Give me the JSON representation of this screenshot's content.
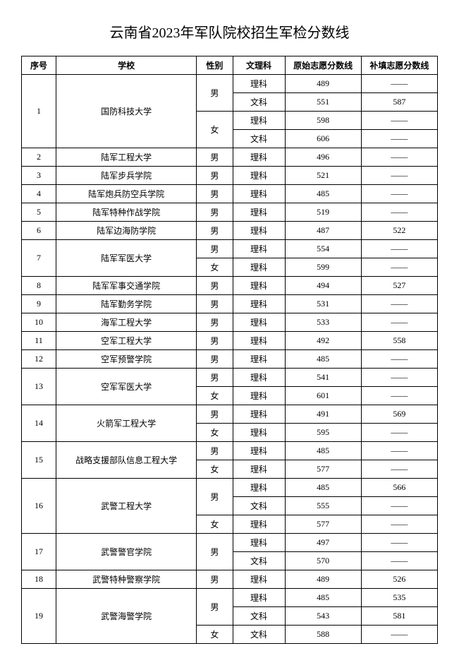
{
  "title": "云南省2023年军队院校招生军检分数线",
  "headers": {
    "seq": "序号",
    "school": "学校",
    "gender": "性别",
    "subject": "文理科",
    "score1": "原始志愿分数线",
    "score2": "补填志愿分数线"
  },
  "dash": "——",
  "rows": [
    {
      "seq": "1",
      "school": "国防科技大学",
      "gender": "男",
      "subject": "理科",
      "s1": "489",
      "s2": "——"
    },
    {
      "seq": "",
      "school": "",
      "gender": "",
      "subject": "文科",
      "s1": "551",
      "s2": "587"
    },
    {
      "seq": "",
      "school": "",
      "gender": "女",
      "subject": "理科",
      "s1": "598",
      "s2": "——"
    },
    {
      "seq": "",
      "school": "",
      "gender": "",
      "subject": "文科",
      "s1": "606",
      "s2": "——"
    },
    {
      "seq": "2",
      "school": "陆军工程大学",
      "gender": "男",
      "subject": "理科",
      "s1": "496",
      "s2": "——"
    },
    {
      "seq": "3",
      "school": "陆军步兵学院",
      "gender": "男",
      "subject": "理科",
      "s1": "521",
      "s2": "——"
    },
    {
      "seq": "4",
      "school": "陆军炮兵防空兵学院",
      "gender": "男",
      "subject": "理科",
      "s1": "485",
      "s2": "——"
    },
    {
      "seq": "5",
      "school": "陆军特种作战学院",
      "gender": "男",
      "subject": "理科",
      "s1": "519",
      "s2": "——"
    },
    {
      "seq": "6",
      "school": "陆军边海防学院",
      "gender": "男",
      "subject": "理科",
      "s1": "487",
      "s2": "522"
    },
    {
      "seq": "7",
      "school": "陆军军医大学",
      "gender": "男",
      "subject": "理科",
      "s1": "554",
      "s2": "——"
    },
    {
      "seq": "",
      "school": "",
      "gender": "女",
      "subject": "理科",
      "s1": "599",
      "s2": "——"
    },
    {
      "seq": "8",
      "school": "陆军军事交通学院",
      "gender": "男",
      "subject": "理科",
      "s1": "494",
      "s2": "527"
    },
    {
      "seq": "9",
      "school": "陆军勤务学院",
      "gender": "男",
      "subject": "理科",
      "s1": "531",
      "s2": "——"
    },
    {
      "seq": "10",
      "school": "海军工程大学",
      "gender": "男",
      "subject": "理科",
      "s1": "533",
      "s2": "——"
    },
    {
      "seq": "11",
      "school": "空军工程大学",
      "gender": "男",
      "subject": "理科",
      "s1": "492",
      "s2": "558"
    },
    {
      "seq": "12",
      "school": "空军预警学院",
      "gender": "男",
      "subject": "理科",
      "s1": "485",
      "s2": "——"
    },
    {
      "seq": "13",
      "school": "空军军医大学",
      "gender": "男",
      "subject": "理科",
      "s1": "541",
      "s2": "——"
    },
    {
      "seq": "",
      "school": "",
      "gender": "女",
      "subject": "理科",
      "s1": "601",
      "s2": "——"
    },
    {
      "seq": "14",
      "school": "火箭军工程大学",
      "gender": "男",
      "subject": "理科",
      "s1": "491",
      "s2": "569"
    },
    {
      "seq": "",
      "school": "",
      "gender": "女",
      "subject": "理科",
      "s1": "595",
      "s2": "——"
    },
    {
      "seq": "15",
      "school": "战略支援部队信息工程大学",
      "gender": "男",
      "subject": "理科",
      "s1": "485",
      "s2": "——"
    },
    {
      "seq": "",
      "school": "",
      "gender": "女",
      "subject": "理科",
      "s1": "577",
      "s2": "——"
    },
    {
      "seq": "16",
      "school": "武警工程大学",
      "gender": "男",
      "subject": "理科",
      "s1": "485",
      "s2": "566"
    },
    {
      "seq": "",
      "school": "",
      "gender": "",
      "subject": "文科",
      "s1": "555",
      "s2": "——"
    },
    {
      "seq": "",
      "school": "",
      "gender": "女",
      "subject": "理科",
      "s1": "577",
      "s2": "——"
    },
    {
      "seq": "17",
      "school": "武警警官学院",
      "gender": "男",
      "subject": "理科",
      "s1": "497",
      "s2": "——"
    },
    {
      "seq": "",
      "school": "",
      "gender": "",
      "subject": "文科",
      "s1": "570",
      "s2": "——"
    },
    {
      "seq": "18",
      "school": "武警特种警察学院",
      "gender": "男",
      "subject": "理科",
      "s1": "489",
      "s2": "526"
    },
    {
      "seq": "19",
      "school": "武警海警学院",
      "gender": "男",
      "subject": "理科",
      "s1": "485",
      "s2": "535"
    },
    {
      "seq": "",
      "school": "",
      "gender": "",
      "subject": "文科",
      "s1": "543",
      "s2": "581"
    },
    {
      "seq": "",
      "school": "",
      "gender": "女",
      "subject": "文科",
      "s1": "588",
      "s2": "——"
    }
  ],
  "spans": [
    {
      "i": 0,
      "seqspan": 4,
      "schoolspan": 4,
      "genderspan": 2
    },
    {
      "i": 1
    },
    {
      "i": 2,
      "genderspan": 2
    },
    {
      "i": 3
    },
    {
      "i": 4
    },
    {
      "i": 5
    },
    {
      "i": 6
    },
    {
      "i": 7
    },
    {
      "i": 8
    },
    {
      "i": 9,
      "seqspan": 2,
      "schoolspan": 2
    },
    {
      "i": 10
    },
    {
      "i": 11
    },
    {
      "i": 12
    },
    {
      "i": 13
    },
    {
      "i": 14
    },
    {
      "i": 15
    },
    {
      "i": 16,
      "seqspan": 2,
      "schoolspan": 2
    },
    {
      "i": 17
    },
    {
      "i": 18,
      "seqspan": 2,
      "schoolspan": 2
    },
    {
      "i": 19
    },
    {
      "i": 20,
      "seqspan": 2,
      "schoolspan": 2
    },
    {
      "i": 21
    },
    {
      "i": 22,
      "seqspan": 3,
      "schoolspan": 3,
      "genderspan": 2
    },
    {
      "i": 23
    },
    {
      "i": 24
    },
    {
      "i": 25,
      "seqspan": 2,
      "schoolspan": 2,
      "genderspan": 2
    },
    {
      "i": 26
    },
    {
      "i": 27
    },
    {
      "i": 28,
      "seqspan": 3,
      "schoolspan": 3,
      "genderspan": 2
    },
    {
      "i": 29
    },
    {
      "i": 30
    }
  ]
}
